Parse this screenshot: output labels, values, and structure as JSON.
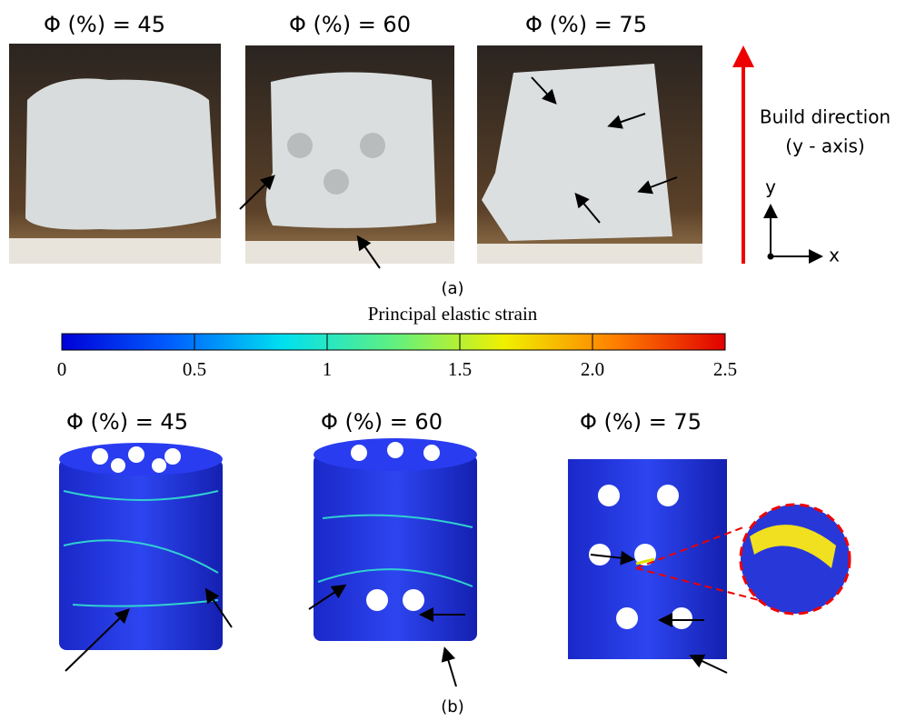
{
  "panel_a": {
    "photos": [
      {
        "label": "Φ (%) = 45"
      },
      {
        "label": "Φ (%) = 60"
      },
      {
        "label": "Φ (%) = 75"
      }
    ],
    "build_direction": "Build direction",
    "axis_note": "(y - axis)",
    "axes": {
      "y": "y",
      "x": "x"
    },
    "caption": "(a)"
  },
  "colorbar": {
    "title": "Principal elastic strain",
    "ticks": [
      0,
      0.5,
      1,
      1.5,
      {
        "value": 2,
        "label": "2.0"
      },
      2.5
    ],
    "colors": [
      "#0000d8",
      "#0060ff",
      "#00e0f0",
      "#60f080",
      "#f0f000",
      "#ff8000",
      "#e00000"
    ]
  },
  "panel_b": {
    "models": [
      {
        "label": "Φ (%) = 45"
      },
      {
        "label": "Φ (%) = 60"
      },
      {
        "label": "Φ (%) = 75"
      }
    ],
    "caption": "(b)"
  }
}
